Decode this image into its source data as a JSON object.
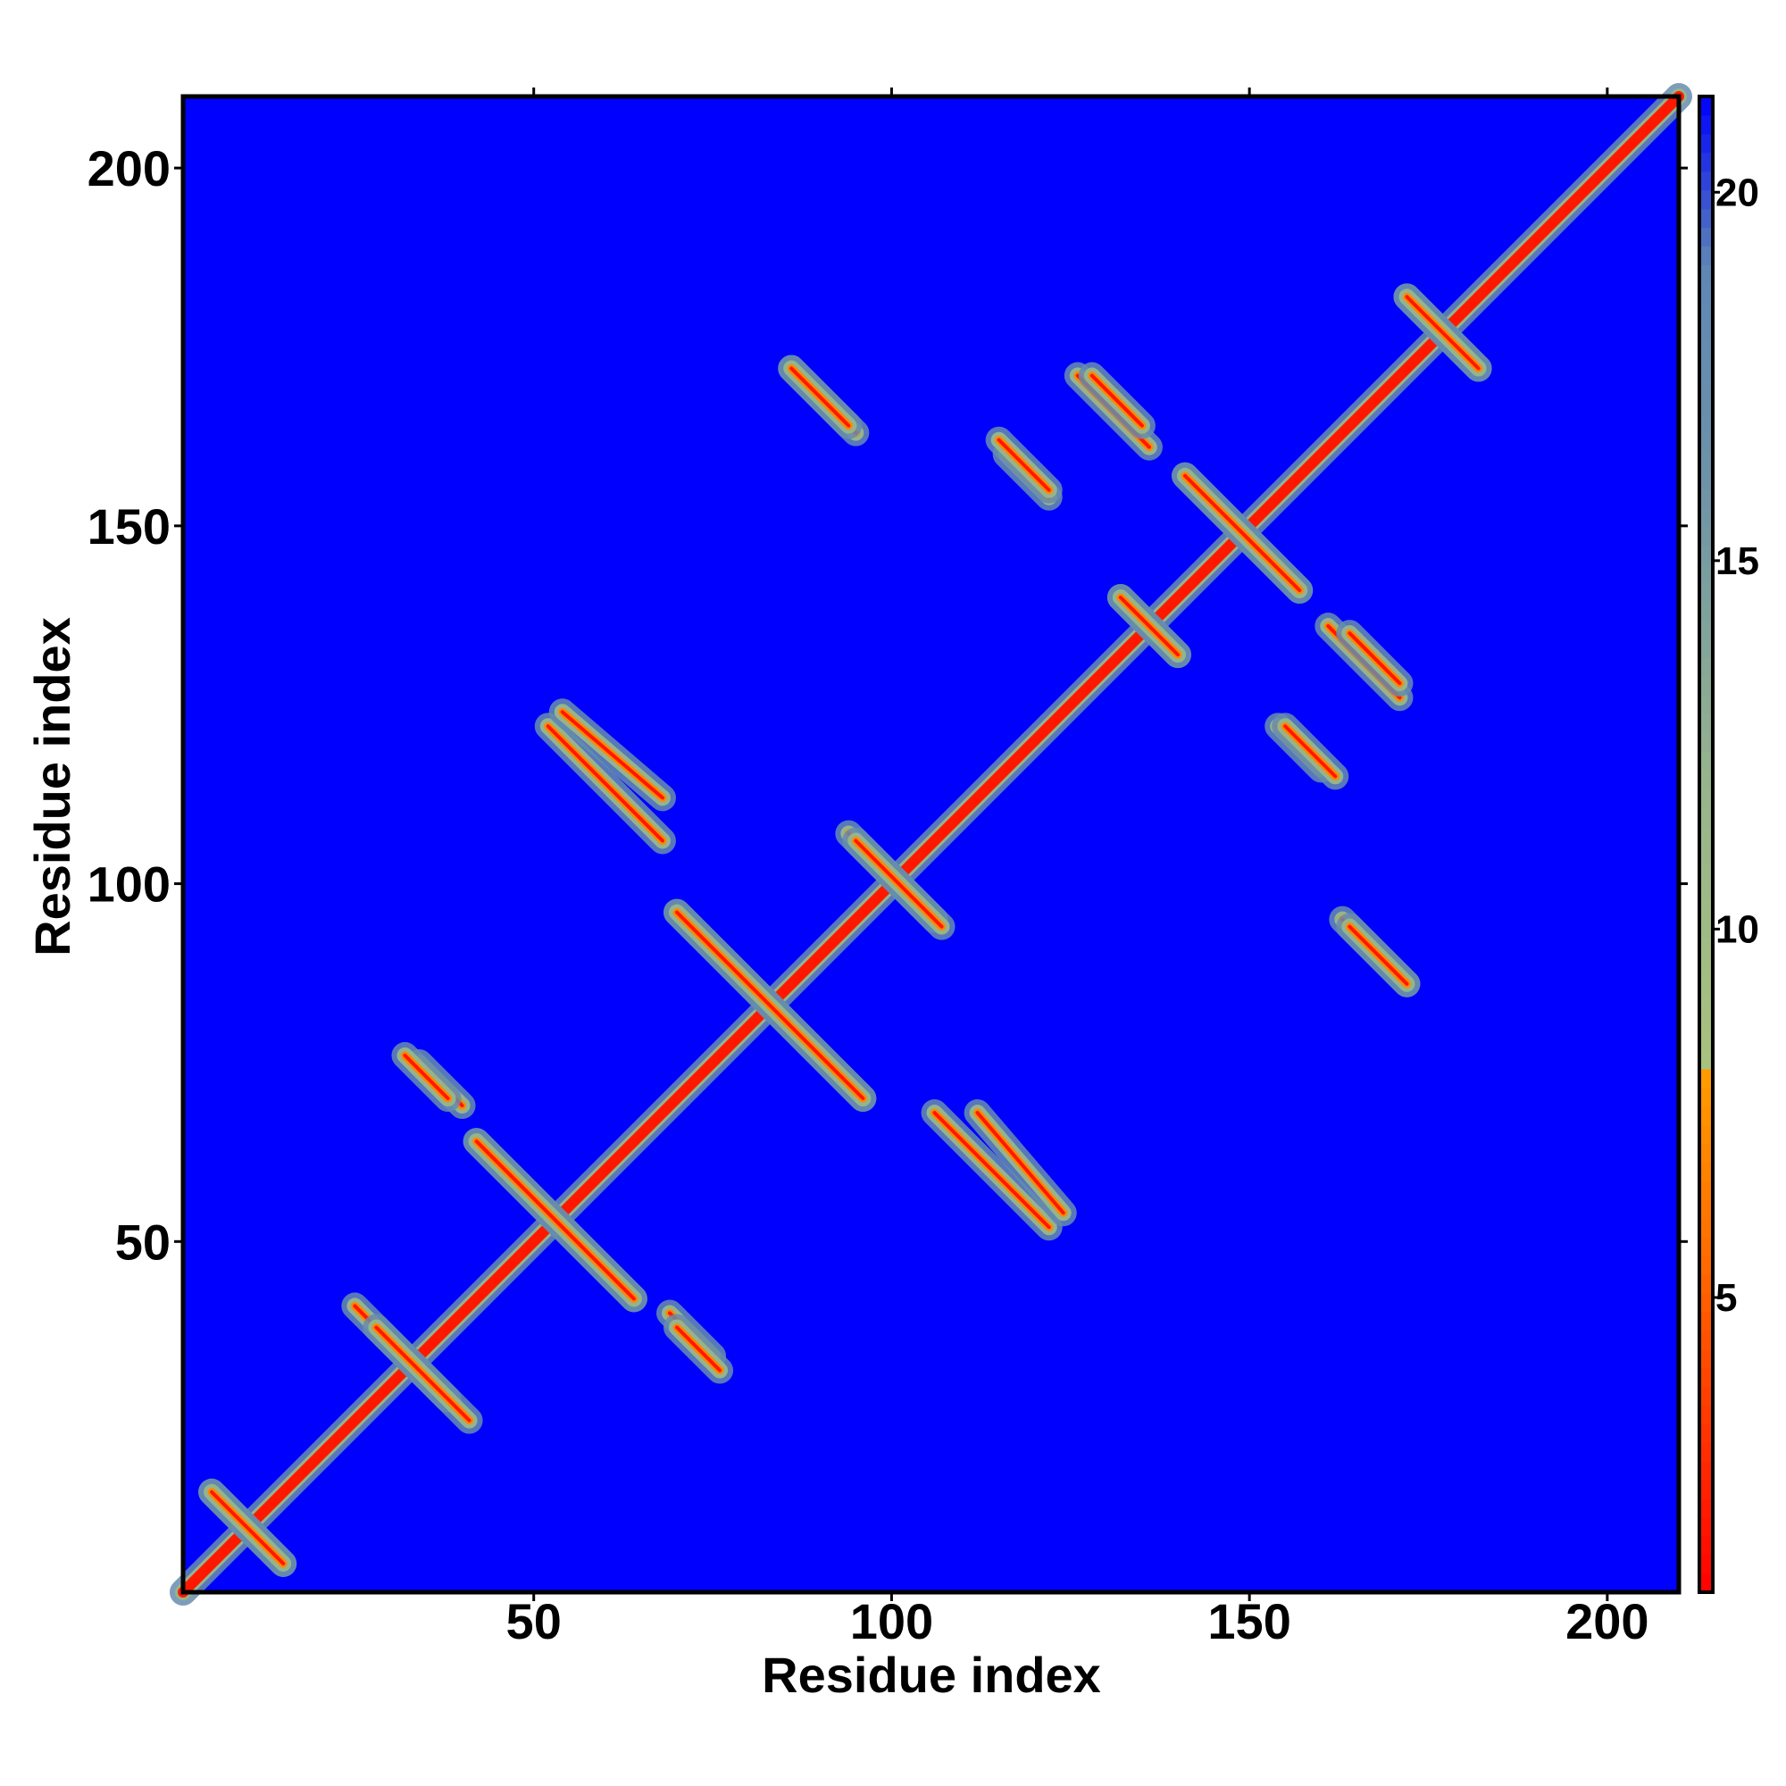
{
  "chart_data": {
    "type": "heatmap",
    "title": "",
    "xlabel": "Residue index",
    "ylabel": "Residue index",
    "xlim": [
      1,
      210
    ],
    "ylim": [
      1,
      210
    ],
    "xticks": [
      50,
      100,
      150,
      200
    ],
    "yticks": [
      50,
      100,
      150,
      200
    ],
    "background_value": 21.3,
    "colorbar": {
      "range": [
        1.0,
        21.3
      ],
      "ticks": [
        5,
        10,
        15,
        20
      ],
      "colors": [
        {
          "value": 1.0,
          "color": "#ff0000"
        },
        {
          "value": 5.5,
          "color": "#ff6a00"
        },
        {
          "value": 8.0,
          "color": "#ff9a00"
        },
        {
          "value": 8.01,
          "color": "#a9c27e"
        },
        {
          "value": 12.0,
          "color": "#96b48c"
        },
        {
          "value": 16.0,
          "color": "#6f93a8"
        },
        {
          "value": 19.0,
          "color": "#5f86b4"
        },
        {
          "value": 21.3,
          "color": "#0000ff"
        }
      ]
    },
    "contact_features": [
      {
        "type": "diagonal",
        "start": 1,
        "end": 210
      },
      {
        "type": "antiparallel",
        "x": [
          25,
          38
        ],
        "y": [
          41,
          28
        ]
      },
      {
        "type": "antiparallel",
        "x": [
          42,
          64
        ],
        "y": [
          64,
          42
        ]
      },
      {
        "type": "antiparallel",
        "x": [
          34,
          40
        ],
        "y": [
          75,
          69
        ]
      },
      {
        "type": "parallel",
        "x": [
          70,
          76
        ],
        "y": [
          38,
          32
        ]
      },
      {
        "type": "antiparallel",
        "x": [
          52,
          68
        ],
        "y": [
          122,
          106
        ]
      },
      {
        "type": "antiparallel",
        "x": [
          70,
          96
        ],
        "y": [
          96,
          70
        ]
      },
      {
        "type": "antiparallel",
        "x": [
          86,
          95
        ],
        "y": [
          172,
          163
        ]
      },
      {
        "type": "parallel",
        "x": [
          112,
          124
        ],
        "y": [
          68,
          54
        ]
      },
      {
        "type": "antiparallel",
        "x": [
          94,
          106
        ],
        "y": [
          107,
          95
        ]
      },
      {
        "type": "antiparallel",
        "x": [
          116,
          122
        ],
        "y": [
          160,
          154
        ]
      },
      {
        "type": "antiparallel",
        "x": [
          126,
          136
        ],
        "y": [
          171,
          161
        ]
      },
      {
        "type": "antiparallel",
        "x": [
          141,
          157
        ],
        "y": [
          157,
          141
        ]
      },
      {
        "type": "antiparallel",
        "x": [
          132,
          140
        ],
        "y": [
          140,
          132
        ]
      },
      {
        "type": "antiparallel",
        "x": [
          164,
          171
        ],
        "y": [
          135,
          128
        ]
      },
      {
        "type": "antiparallel",
        "x": [
          155,
          162
        ],
        "y": [
          122,
          115
        ]
      },
      {
        "type": "antiparallel",
        "x": [
          164,
          172
        ],
        "y": [
          94,
          86
        ]
      },
      {
        "type": "antiparallel",
        "x": [
          172,
          182
        ],
        "y": [
          182,
          172
        ]
      },
      {
        "type": "band",
        "x": [
          5,
          15
        ],
        "y": [
          15,
          5
        ]
      }
    ]
  }
}
